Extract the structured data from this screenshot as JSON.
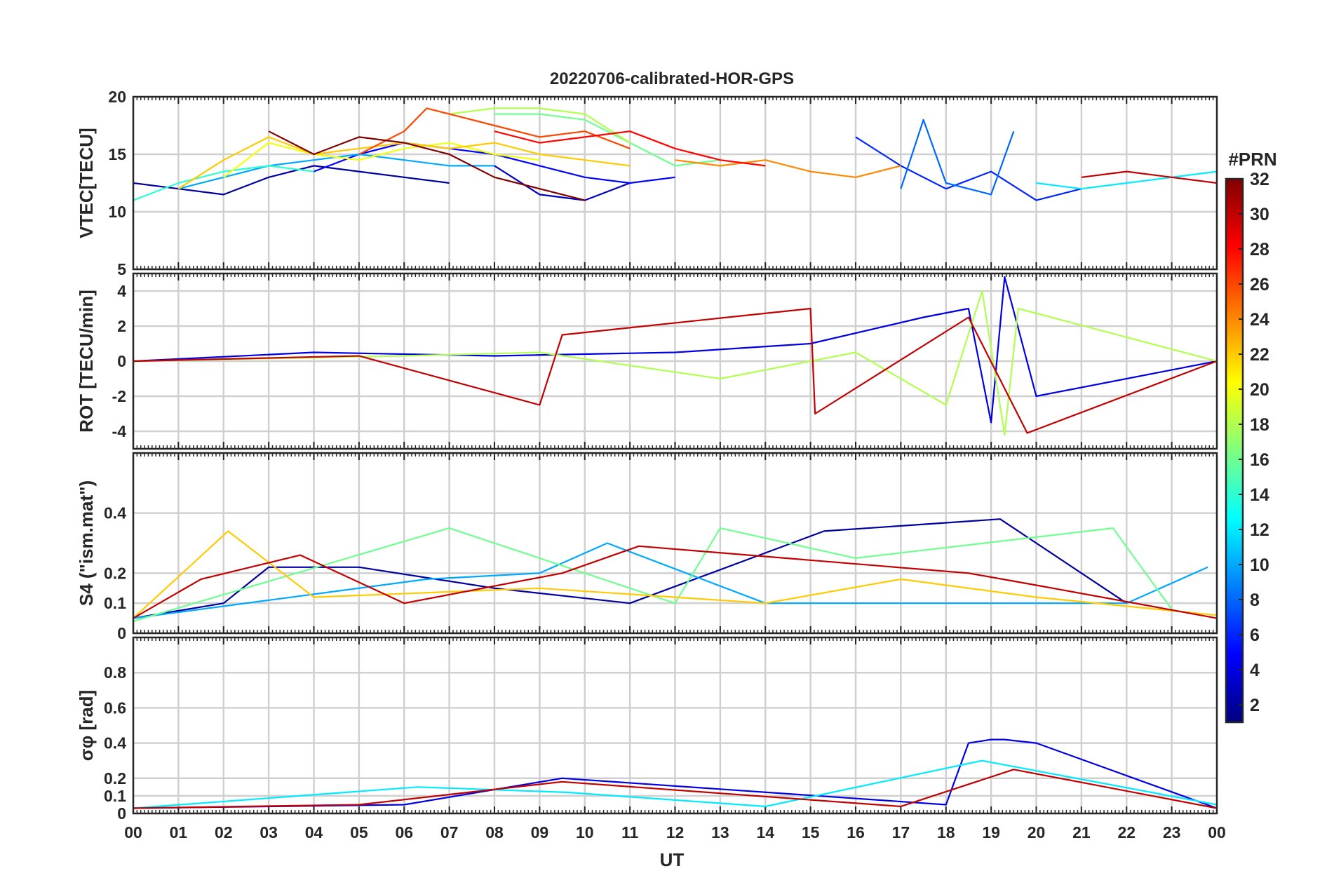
{
  "figure": {
    "title": "20220706-calibrated-HOR-GPS",
    "xlabel": "UT",
    "xticks": [
      "00",
      "01",
      "02",
      "03",
      "04",
      "05",
      "06",
      "07",
      "08",
      "09",
      "10",
      "11",
      "12",
      "13",
      "14",
      "15",
      "16",
      "17",
      "18",
      "19",
      "20",
      "21",
      "22",
      "23",
      "00"
    ],
    "colorbar": {
      "label": "#PRN",
      "range": [
        1,
        32
      ],
      "ticks": [
        2,
        4,
        6,
        8,
        10,
        12,
        14,
        16,
        18,
        20,
        22,
        24,
        26,
        28,
        30,
        32
      ],
      "colormap": [
        "#000080",
        "#0000ff",
        "#0080ff",
        "#00ffff",
        "#80ff80",
        "#ffff00",
        "#ff8000",
        "#ff0000",
        "#800000"
      ]
    }
  },
  "chart_data": [
    {
      "type": "line",
      "panel": "vtec",
      "ylabel": "VTEC[TECU]",
      "ylim": [
        5,
        20
      ],
      "yticks": [
        5,
        10,
        15,
        20
      ],
      "ytick_labels": [
        "5",
        "10",
        "15",
        "20"
      ],
      "xlim": [
        0,
        24
      ],
      "grid": true,
      "series": [
        {
          "prn": 2,
          "x": [
            0,
            1,
            2,
            3,
            4,
            5,
            6,
            7
          ],
          "y": [
            12.5,
            12.0,
            11.5,
            13.0,
            14.0,
            13.5,
            13.0,
            12.5
          ]
        },
        {
          "prn": 3,
          "x": [
            8,
            9,
            10,
            11
          ],
          "y": [
            14.0,
            11.5,
            11.0,
            12.5
          ]
        },
        {
          "prn": 5,
          "x": [
            4,
            5,
            6,
            7,
            8,
            9,
            10,
            11,
            12
          ],
          "y": [
            13.5,
            15.0,
            16.0,
            15.5,
            15.0,
            14.0,
            13.0,
            12.5,
            13.0
          ]
        },
        {
          "prn": 6,
          "x": [
            16,
            17,
            18,
            19,
            20,
            21
          ],
          "y": [
            16.5,
            14.0,
            12.0,
            13.5,
            11.0,
            12.0
          ]
        },
        {
          "prn": 8,
          "x": [
            17,
            17.5,
            18,
            19,
            19.5
          ],
          "y": [
            12.0,
            18.0,
            12.5,
            11.5,
            17.0
          ]
        },
        {
          "prn": 10,
          "x": [
            1,
            2,
            3,
            4,
            5,
            6,
            7,
            8
          ],
          "y": [
            12.0,
            13.0,
            14.0,
            14.5,
            15.0,
            14.5,
            14.0,
            14.0
          ]
        },
        {
          "prn": 12,
          "x": [
            20,
            21,
            22,
            23,
            24
          ],
          "y": [
            12.5,
            12.0,
            12.5,
            13.0,
            13.5
          ]
        },
        {
          "prn": 14,
          "x": [
            0,
            1,
            2,
            3,
            4
          ],
          "y": [
            11.0,
            12.5,
            13.5,
            14.0,
            13.5
          ]
        },
        {
          "prn": 16,
          "x": [
            8,
            9,
            10,
            11,
            12,
            13
          ],
          "y": [
            18.5,
            18.5,
            18.0,
            16.0,
            14.0,
            14.5
          ]
        },
        {
          "prn": 18,
          "x": [
            7,
            8,
            9,
            10,
            11
          ],
          "y": [
            18.5,
            19.0,
            19.0,
            18.5,
            16.0
          ]
        },
        {
          "prn": 20,
          "x": [
            2,
            3,
            4,
            5,
            6,
            7,
            8,
            9
          ],
          "y": [
            13.0,
            16.0,
            15.0,
            14.5,
            15.5,
            16.0,
            15.0,
            14.5
          ]
        },
        {
          "prn": 22,
          "x": [
            1,
            2,
            3,
            4,
            5,
            6,
            7,
            8,
            9,
            10,
            11
          ],
          "y": [
            12.0,
            14.5,
            16.5,
            15.0,
            15.5,
            16.0,
            15.5,
            16.0,
            15.0,
            14.5,
            14.0
          ]
        },
        {
          "prn": 24,
          "x": [
            12,
            13,
            14,
            15,
            16,
            17
          ],
          "y": [
            14.5,
            14.0,
            14.5,
            13.5,
            13.0,
            14.0
          ]
        },
        {
          "prn": 26,
          "x": [
            5,
            6,
            6.5,
            7,
            8,
            9,
            10,
            11
          ],
          "y": [
            15.0,
            17.0,
            19.0,
            18.5,
            17.5,
            16.5,
            17.0,
            15.5
          ]
        },
        {
          "prn": 28,
          "x": [
            8,
            9,
            10,
            11,
            12,
            13,
            14
          ],
          "y": [
            17.0,
            16.0,
            16.5,
            17.0,
            15.5,
            14.5,
            14.0
          ]
        },
        {
          "prn": 30,
          "x": [
            21,
            22,
            23,
            24
          ],
          "y": [
            13.0,
            13.5,
            13.0,
            12.5
          ]
        },
        {
          "prn": 32,
          "x": [
            3,
            4,
            5,
            6,
            7,
            8,
            9,
            10
          ],
          "y": [
            17.0,
            15.0,
            16.5,
            16.0,
            15.0,
            13.0,
            12.0,
            11.0
          ]
        }
      ]
    },
    {
      "type": "line",
      "panel": "rot",
      "ylabel": "ROT [TECU/min]",
      "ylim": [
        -5,
        5
      ],
      "yticks": [
        -4,
        -2,
        0,
        2,
        4
      ],
      "ytick_labels": [
        "-4",
        "-2",
        "0",
        "2",
        "4"
      ],
      "xlim": [
        0,
        24
      ],
      "grid": true,
      "series": [
        {
          "prn": 4,
          "x": [
            0,
            4,
            8,
            12,
            15,
            17.5,
            18.5,
            19,
            19.3,
            20,
            24
          ],
          "y": [
            0,
            0.5,
            0.3,
            0.5,
            1.0,
            2.5,
            3.0,
            -3.5,
            4.8,
            -2.0,
            0
          ]
        },
        {
          "prn": 18,
          "x": [
            0,
            6,
            9,
            13,
            16,
            18,
            18.8,
            19.3,
            19.6,
            24
          ],
          "y": [
            0,
            0.3,
            0.5,
            -1.0,
            0.5,
            -2.5,
            4.0,
            -4.2,
            3.0,
            0
          ]
        },
        {
          "prn": 30,
          "x": [
            0,
            5,
            9,
            9.5,
            15,
            15.1,
            18.5,
            19.8,
            24
          ],
          "y": [
            0,
            0.3,
            -2.5,
            1.5,
            3.0,
            -3.0,
            2.5,
            -4.1,
            0
          ]
        }
      ]
    },
    {
      "type": "line",
      "panel": "s4",
      "ylabel": "S4 (\"ism.mat\")",
      "ylim": [
        0,
        0.6
      ],
      "yticks": [
        0,
        0.1,
        0.2,
        0.4
      ],
      "ytick_labels": [
        "0",
        "0.1",
        "0.2",
        "0.4"
      ],
      "xlim": [
        0,
        24
      ],
      "grid": true,
      "series": [
        {
          "prn": 2,
          "x": [
            0,
            2,
            3,
            5,
            8,
            11,
            15.3,
            19.2,
            22
          ],
          "y": [
            0.05,
            0.1,
            0.22,
            0.22,
            0.15,
            0.1,
            0.34,
            0.38,
            0.1
          ]
        },
        {
          "prn": 10,
          "x": [
            0,
            6.5,
            9,
            10.5,
            14,
            18,
            22,
            23.8
          ],
          "y": [
            0.05,
            0.18,
            0.2,
            0.3,
            0.1,
            0.1,
            0.1,
            0.22
          ]
        },
        {
          "prn": 16,
          "x": [
            0,
            7,
            12,
            13,
            16,
            21.7,
            23
          ],
          "y": [
            0.04,
            0.35,
            0.1,
            0.35,
            0.25,
            0.35,
            0.08
          ]
        },
        {
          "prn": 22,
          "x": [
            0,
            2.1,
            4,
            9,
            14,
            17,
            20,
            24
          ],
          "y": [
            0.05,
            0.34,
            0.12,
            0.15,
            0.1,
            0.18,
            0.12,
            0.06
          ]
        },
        {
          "prn": 30,
          "x": [
            0,
            1.5,
            3.7,
            6,
            9.5,
            11.2,
            18.5,
            20,
            24
          ],
          "y": [
            0.05,
            0.18,
            0.26,
            0.1,
            0.2,
            0.29,
            0.2,
            0.16,
            0.05
          ]
        }
      ]
    },
    {
      "type": "line",
      "panel": "sigma_phi",
      "ylabel": "σφ [rad]",
      "ylim": [
        0,
        1
      ],
      "yticks": [
        0,
        0.1,
        0.2,
        0.4,
        0.6,
        0.8
      ],
      "ytick_labels": [
        "0",
        "0.1",
        "0.2",
        "0.4",
        "0.6",
        "0.8"
      ],
      "xlim": [
        0,
        24
      ],
      "grid": true,
      "series": [
        {
          "prn": 4,
          "x": [
            0,
            6,
            9.5,
            18,
            18.5,
            19,
            19.3,
            20,
            24
          ],
          "y": [
            0.03,
            0.05,
            0.2,
            0.05,
            0.4,
            0.42,
            0.42,
            0.4,
            0.03
          ]
        },
        {
          "prn": 12,
          "x": [
            0,
            6.3,
            9.6,
            14,
            18.8,
            24
          ],
          "y": [
            0.03,
            0.15,
            0.12,
            0.04,
            0.3,
            0.05
          ]
        },
        {
          "prn": 30,
          "x": [
            0,
            5,
            9.5,
            17,
            19.5,
            24
          ],
          "y": [
            0.03,
            0.05,
            0.18,
            0.04,
            0.25,
            0.03
          ]
        }
      ]
    }
  ]
}
